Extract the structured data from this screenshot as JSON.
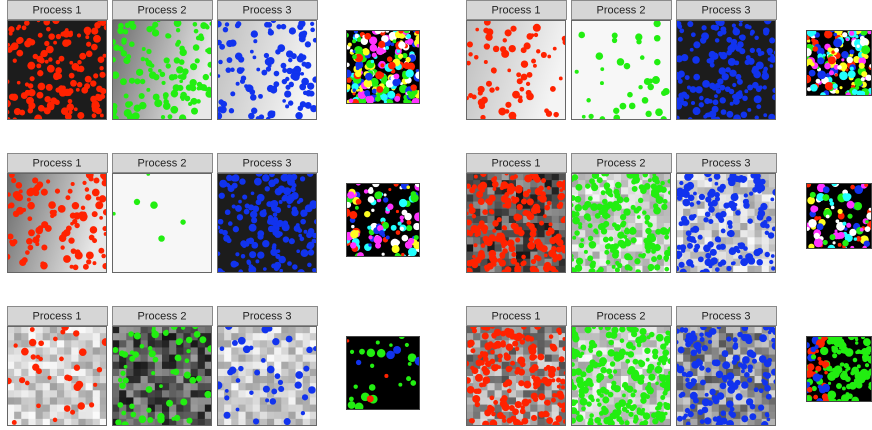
{
  "groups": [
    {
      "panels": [
        {
          "title": "Process 1"
        },
        {
          "title": "Process 2"
        },
        {
          "title": "Process 3"
        }
      ]
    },
    {
      "panels": [
        {
          "title": "Process 1"
        },
        {
          "title": "Process 2"
        },
        {
          "title": "Process 3"
        }
      ]
    },
    {
      "panels": [
        {
          "title": "Process 1"
        },
        {
          "title": "Process 2"
        },
        {
          "title": "Process 3"
        }
      ]
    },
    {
      "panels": [
        {
          "title": "Process 1"
        },
        {
          "title": "Process 2"
        },
        {
          "title": "Process 3"
        }
      ]
    },
    {
      "panels": [
        {
          "title": "Process 1"
        },
        {
          "title": "Process 2"
        },
        {
          "title": "Process 3"
        }
      ]
    },
    {
      "panels": [
        {
          "title": "Process 1"
        },
        {
          "title": "Process 2"
        },
        {
          "title": "Process 3"
        }
      ]
    }
  ]
}
